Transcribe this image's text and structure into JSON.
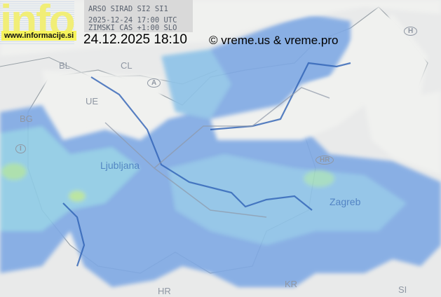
{
  "header": {
    "source": "ARSO SIRAD SI2 SI1",
    "utc_time": "2025-12-24 17:00 UTC",
    "timezone_note": "ZIMSKI CAS +1:00 SLO"
  },
  "logo": {
    "text": "info",
    "website": "www.informacije.si"
  },
  "timestamp": "24.12.2025 18:10",
  "copyright": "© vreme.us & vreme.pro",
  "map_labels": {
    "bl": "BL",
    "cl": "CL",
    "a": "A",
    "ue": "UE",
    "bg": "BG",
    "i": "I",
    "hr": "HR",
    "hr2": "HR",
    "h": "H",
    "kr": "KR",
    "si": "SI",
    "ljubljana": "Ljubljana",
    "zagreb": "Zagreb"
  },
  "colors": {
    "radar_light": "#7fb2e6",
    "radar_mid": "#6f9de0",
    "radar_cyan": "#8fd0e6",
    "radar_green": "#9ee0a0",
    "river": "#2f62b5",
    "land": "#eceeec"
  }
}
